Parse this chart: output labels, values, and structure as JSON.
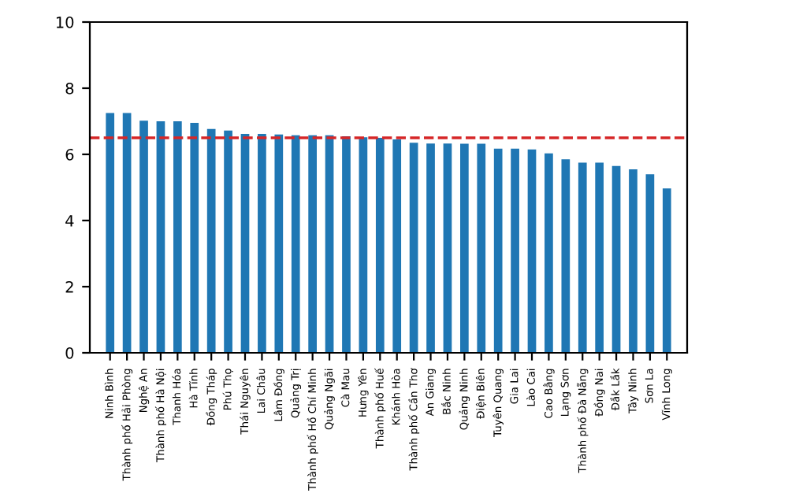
{
  "chart_data": {
    "type": "bar",
    "categories": [
      "Ninh Bình",
      "Thành phố Hải Phòng",
      "Nghệ An",
      "Thành phố Hà Nội",
      "Thanh Hóa",
      "Hà Tĩnh",
      "Đồng Tháp",
      "Phú Thọ",
      "Thái Nguyên",
      "Lai Châu",
      "Lâm Đồng",
      "Quảng Trị",
      "Thành phố Hồ Chí Minh",
      "Quảng Ngãi",
      "Cà Mau",
      "Hưng Yên",
      "Thành phố Huế",
      "Khánh Hòa",
      "Thành phố Cần Thơ",
      "An Giang",
      "Bắc Ninh",
      "Quảng Ninh",
      "Điện Biên",
      "Tuyên Quang",
      "Gia Lai",
      "Lào Cai",
      "Cao Bằng",
      "Lạng Sơn",
      "Thành phố Đà Nẵng",
      "Đồng Nai",
      "Đắk Lắk",
      "Tây Ninh",
      "Sơn La",
      "Vĩnh Long"
    ],
    "values": [
      7.25,
      7.25,
      7.02,
      7.0,
      7.0,
      6.95,
      6.77,
      6.72,
      6.62,
      6.62,
      6.6,
      6.58,
      6.58,
      6.58,
      6.55,
      6.52,
      6.5,
      6.45,
      6.35,
      6.33,
      6.33,
      6.32,
      6.32,
      6.17,
      6.17,
      6.15,
      6.03,
      5.85,
      5.75,
      5.75,
      5.65,
      5.55,
      5.4,
      4.97
    ],
    "color": "#1f77b4",
    "ylim": [
      0,
      10
    ],
    "yticks": [
      0,
      2,
      4,
      6,
      8,
      10
    ],
    "ref_lines": [
      {
        "axis": "y",
        "value": 6.5,
        "color": "#d62728",
        "line_style": "dashed"
      }
    ],
    "grid": false,
    "legend": false
  }
}
